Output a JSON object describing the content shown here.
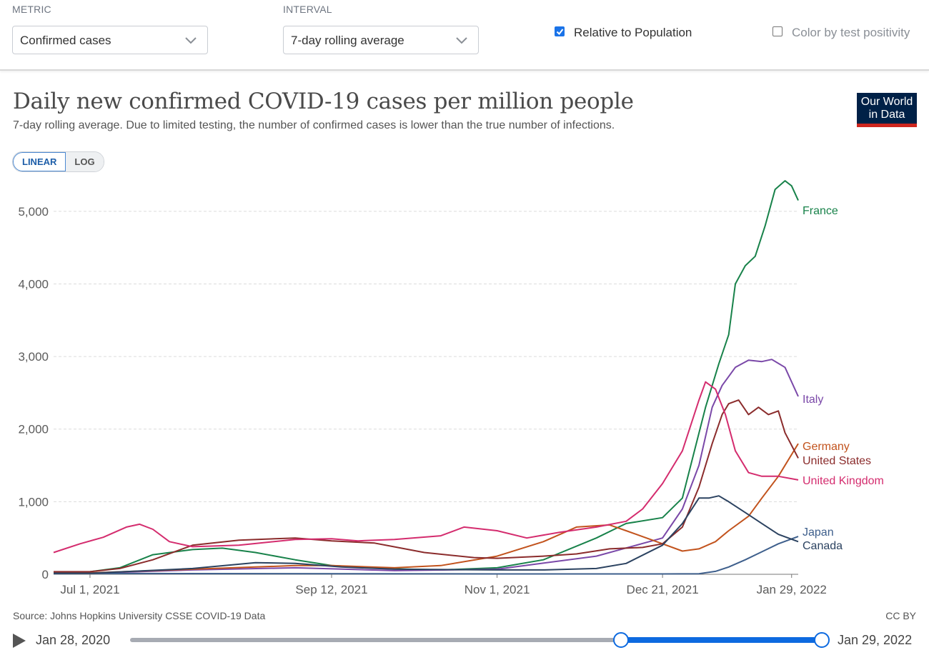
{
  "controls": {
    "metric_label": "METRIC",
    "metric_value": "Confirmed cases",
    "interval_label": "INTERVAL",
    "interval_value": "7-day rolling average",
    "relative_label": "Relative to Population",
    "relative_checked": true,
    "color_label": "Color by test positivity",
    "color_checked": false
  },
  "header": {
    "title": "Daily new confirmed COVID-19 cases per million people",
    "subtitle": "7-day rolling average. Due to limited testing, the number of confirmed cases is lower than the true number of infections.",
    "logo_line1": "Our World",
    "logo_line2": "in Data"
  },
  "scale_toggle": {
    "linear": "LINEAR",
    "log": "LOG",
    "active": "LINEAR"
  },
  "footer": {
    "source": "Source: Johns Hopkins University CSSE COVID-19 Data",
    "license": "CC BY"
  },
  "timeline": {
    "start_label": "Jan 28, 2020",
    "end_label": "Jan 29, 2022",
    "range_start_fraction": 0.71,
    "range_end_fraction": 1.0
  },
  "chart_data": {
    "type": "line",
    "title": "Daily new confirmed COVID-19 cases per million people",
    "x_start": "2021-06-20",
    "x_end": "2022-01-31",
    "ylim": [
      0,
      5500
    ],
    "y_ticks": [
      0,
      1000,
      2000,
      3000,
      4000,
      5000
    ],
    "y_tick_labels": [
      "0",
      "1,000",
      "2,000",
      "3,000",
      "4,000",
      "5,000"
    ],
    "x_ticks": [
      "2021-07-01",
      "2021-09-12",
      "2021-11-01",
      "2021-12-21",
      "2022-01-29"
    ],
    "x_tick_labels": [
      "Jul 1, 2021",
      "Sep 12, 2021",
      "Nov 1, 2021",
      "Dec 21, 2021",
      "Jan 29, 2022"
    ],
    "grid": true,
    "legend": "labels at line ends (right)",
    "series": [
      {
        "name": "France",
        "color": "#18824a",
        "points": [
          [
            "2021-06-20",
            15
          ],
          [
            "2021-07-01",
            35
          ],
          [
            "2021-07-10",
            90
          ],
          [
            "2021-07-20",
            270
          ],
          [
            "2021-08-01",
            340
          ],
          [
            "2021-08-10",
            360
          ],
          [
            "2021-08-20",
            300
          ],
          [
            "2021-09-01",
            200
          ],
          [
            "2021-09-12",
            120
          ],
          [
            "2021-10-01",
            75
          ],
          [
            "2021-10-15",
            60
          ],
          [
            "2021-11-01",
            90
          ],
          [
            "2021-11-15",
            200
          ],
          [
            "2021-12-01",
            500
          ],
          [
            "2021-12-10",
            700
          ],
          [
            "2021-12-21",
            780
          ],
          [
            "2021-12-27",
            1050
          ],
          [
            "2022-01-03",
            2300
          ],
          [
            "2022-01-07",
            2900
          ],
          [
            "2022-01-10",
            3300
          ],
          [
            "2022-01-12",
            4000
          ],
          [
            "2022-01-15",
            4250
          ],
          [
            "2022-01-18",
            4380
          ],
          [
            "2022-01-21",
            4800
          ],
          [
            "2022-01-24",
            5300
          ],
          [
            "2022-01-27",
            5420
          ],
          [
            "2022-01-29",
            5350
          ],
          [
            "2022-01-31",
            5150
          ]
        ]
      },
      {
        "name": "Italy",
        "color": "#7a48a8",
        "points": [
          [
            "2021-06-20",
            15
          ],
          [
            "2021-07-01",
            15
          ],
          [
            "2021-08-01",
            60
          ],
          [
            "2021-09-01",
            90
          ],
          [
            "2021-10-01",
            50
          ],
          [
            "2021-11-01",
            70
          ],
          [
            "2021-12-01",
            250
          ],
          [
            "2021-12-21",
            500
          ],
          [
            "2021-12-27",
            900
          ],
          [
            "2022-01-01",
            1500
          ],
          [
            "2022-01-05",
            2300
          ],
          [
            "2022-01-08",
            2600
          ],
          [
            "2022-01-12",
            2850
          ],
          [
            "2022-01-16",
            2950
          ],
          [
            "2022-01-20",
            2930
          ],
          [
            "2022-01-23",
            2960
          ],
          [
            "2022-01-27",
            2850
          ],
          [
            "2022-01-31",
            2450
          ]
        ]
      },
      {
        "name": "Germany",
        "color": "#c2531d",
        "points": [
          [
            "2021-06-20",
            20
          ],
          [
            "2021-07-01",
            20
          ],
          [
            "2021-08-01",
            70
          ],
          [
            "2021-09-01",
            120
          ],
          [
            "2021-09-12",
            120
          ],
          [
            "2021-10-01",
            90
          ],
          [
            "2021-10-15",
            120
          ],
          [
            "2021-11-01",
            250
          ],
          [
            "2021-11-15",
            450
          ],
          [
            "2021-11-25",
            650
          ],
          [
            "2021-12-05",
            680
          ],
          [
            "2021-12-10",
            600
          ],
          [
            "2021-12-21",
            420
          ],
          [
            "2021-12-27",
            320
          ],
          [
            "2022-01-01",
            350
          ],
          [
            "2022-01-06",
            450
          ],
          [
            "2022-01-10",
            600
          ],
          [
            "2022-01-16",
            800
          ],
          [
            "2022-01-20",
            1050
          ],
          [
            "2022-01-25",
            1350
          ],
          [
            "2022-01-31",
            1800
          ]
        ]
      },
      {
        "name": "United States",
        "color": "#8b2c2c",
        "points": [
          [
            "2021-06-20",
            35
          ],
          [
            "2021-07-01",
            35
          ],
          [
            "2021-07-10",
            80
          ],
          [
            "2021-07-20",
            200
          ],
          [
            "2021-08-01",
            400
          ],
          [
            "2021-08-15",
            470
          ],
          [
            "2021-09-01",
            500
          ],
          [
            "2021-09-12",
            460
          ],
          [
            "2021-09-25",
            430
          ],
          [
            "2021-10-10",
            300
          ],
          [
            "2021-10-25",
            230
          ],
          [
            "2021-11-01",
            220
          ],
          [
            "2021-11-15",
            250
          ],
          [
            "2021-11-25",
            280
          ],
          [
            "2021-12-05",
            350
          ],
          [
            "2021-12-15",
            370
          ],
          [
            "2021-12-21",
            420
          ],
          [
            "2021-12-27",
            650
          ],
          [
            "2022-01-01",
            1200
          ],
          [
            "2022-01-05",
            1800
          ],
          [
            "2022-01-08",
            2200
          ],
          [
            "2022-01-10",
            2350
          ],
          [
            "2022-01-13",
            2400
          ],
          [
            "2022-01-16",
            2200
          ],
          [
            "2022-01-19",
            2300
          ],
          [
            "2022-01-22",
            2200
          ],
          [
            "2022-01-25",
            2250
          ],
          [
            "2022-01-27",
            1950
          ],
          [
            "2022-01-31",
            1600
          ]
        ]
      },
      {
        "name": "United Kingdom",
        "color": "#d42c6e",
        "points": [
          [
            "2021-06-20",
            300
          ],
          [
            "2021-06-28",
            420
          ],
          [
            "2021-07-05",
            510
          ],
          [
            "2021-07-12",
            650
          ],
          [
            "2021-07-16",
            690
          ],
          [
            "2021-07-20",
            620
          ],
          [
            "2021-07-25",
            450
          ],
          [
            "2021-08-01",
            380
          ],
          [
            "2021-08-15",
            400
          ],
          [
            "2021-09-01",
            480
          ],
          [
            "2021-09-12",
            490
          ],
          [
            "2021-09-20",
            460
          ],
          [
            "2021-10-01",
            480
          ],
          [
            "2021-10-15",
            530
          ],
          [
            "2021-10-22",
            650
          ],
          [
            "2021-11-01",
            600
          ],
          [
            "2021-11-10",
            500
          ],
          [
            "2021-11-20",
            580
          ],
          [
            "2021-12-01",
            650
          ],
          [
            "2021-12-10",
            730
          ],
          [
            "2021-12-15",
            900
          ],
          [
            "2021-12-21",
            1250
          ],
          [
            "2021-12-27",
            1700
          ],
          [
            "2022-01-01",
            2400
          ],
          [
            "2022-01-03",
            2650
          ],
          [
            "2022-01-06",
            2550
          ],
          [
            "2022-01-09",
            2200
          ],
          [
            "2022-01-12",
            1700
          ],
          [
            "2022-01-16",
            1400
          ],
          [
            "2022-01-20",
            1350
          ],
          [
            "2022-01-25",
            1350
          ],
          [
            "2022-01-31",
            1300
          ]
        ]
      },
      {
        "name": "Japan",
        "color": "#3e5f8c",
        "points": [
          [
            "2021-06-20",
            10
          ],
          [
            "2021-07-01",
            12
          ],
          [
            "2021-11-01",
            5
          ],
          [
            "2021-12-21",
            5
          ],
          [
            "2022-01-01",
            8
          ],
          [
            "2022-01-06",
            40
          ],
          [
            "2022-01-10",
            100
          ],
          [
            "2022-01-15",
            200
          ],
          [
            "2022-01-20",
            310
          ],
          [
            "2022-01-25",
            420
          ],
          [
            "2022-01-31",
            520
          ]
        ]
      },
      {
        "name": "Canada",
        "color": "#2b4260",
        "points": [
          [
            "2021-06-20",
            15
          ],
          [
            "2021-07-01",
            15
          ],
          [
            "2021-08-01",
            80
          ],
          [
            "2021-08-20",
            160
          ],
          [
            "2021-09-01",
            150
          ],
          [
            "2021-09-15",
            100
          ],
          [
            "2021-10-01",
            70
          ],
          [
            "2021-11-01",
            60
          ],
          [
            "2021-11-15",
            60
          ],
          [
            "2021-12-01",
            80
          ],
          [
            "2021-12-10",
            150
          ],
          [
            "2021-12-21",
            400
          ],
          [
            "2021-12-27",
            700
          ],
          [
            "2022-01-01",
            1050
          ],
          [
            "2022-01-04",
            1050
          ],
          [
            "2022-01-07",
            1080
          ],
          [
            "2022-01-10",
            1000
          ],
          [
            "2022-01-15",
            850
          ],
          [
            "2022-01-20",
            700
          ],
          [
            "2022-01-25",
            550
          ],
          [
            "2022-01-31",
            450
          ]
        ]
      }
    ]
  }
}
